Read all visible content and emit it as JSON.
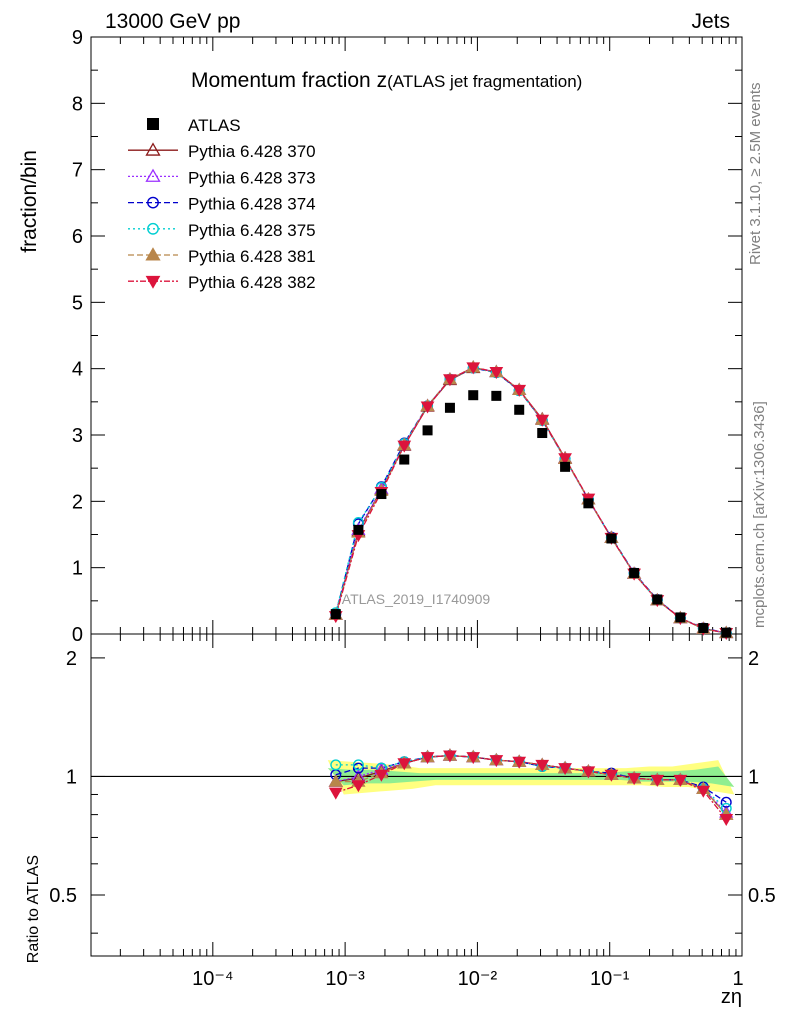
{
  "header": {
    "energy": "13000 GeV pp",
    "process": "Jets"
  },
  "side_labels": {
    "rivet": "Rivet 3.1.10, ≥ 2.5M events",
    "mcplots": "mcplots.cern.ch [arXiv:1306.3436]"
  },
  "analysis_id": "ATLAS_2019_I1740909",
  "chart_data": [
    {
      "type": "line",
      "panel": "main",
      "title_main": "Momentum fraction z",
      "title_sub": "(ATLAS jet fragmentation)",
      "ylabel": "fraction/bin",
      "xlabel": "zη",
      "x_scale": "log",
      "xlim": [
        1.2e-05,
        1.0
      ],
      "ylim": [
        0,
        9
      ],
      "yticks": [
        "0",
        "1",
        "2",
        "3",
        "4",
        "5",
        "6",
        "7",
        "8",
        "9"
      ],
      "xticks": [
        "10⁻⁴",
        "10⁻³",
        "10⁻²",
        "10⁻¹",
        "1"
      ],
      "legend_position": "top-left",
      "x": [
        0.00085,
        0.00126,
        0.00188,
        0.0028,
        0.0042,
        0.0062,
        0.0093,
        0.0139,
        0.0207,
        0.0309,
        0.046,
        0.069,
        0.103,
        0.153,
        0.229,
        0.342,
        0.51,
        0.76
      ],
      "data": {
        "name": "ATLAS",
        "values": [
          0.3,
          1.57,
          2.11,
          2.63,
          3.07,
          3.41,
          3.6,
          3.59,
          3.38,
          3.03,
          2.52,
          1.97,
          1.44,
          0.92,
          0.52,
          0.25,
          0.09,
          0.02
        ]
      },
      "series": [
        {
          "name": "Pythia 6.428 370",
          "color": "#8b1a1a",
          "dash": "",
          "marker": "triangle-open",
          "values": [
            0.29,
            1.55,
            2.18,
            2.84,
            3.43,
            3.83,
            4.01,
            3.95,
            3.68,
            3.24,
            2.65,
            2.03,
            1.45,
            0.91,
            0.51,
            0.24,
            0.08,
            0.016
          ]
        },
        {
          "name": "Pythia 6.428 373",
          "color": "#9b30ff",
          "dash": "2,2",
          "marker": "triangle-open",
          "values": [
            0.29,
            1.57,
            2.19,
            2.85,
            3.44,
            3.84,
            4.02,
            3.95,
            3.68,
            3.23,
            2.64,
            2.03,
            1.45,
            0.91,
            0.51,
            0.24,
            0.08,
            0.016
          ]
        },
        {
          "name": "Pythia 6.428 374",
          "color": "#0000cd",
          "dash": "6,3",
          "marker": "circle-open",
          "values": [
            0.3,
            1.66,
            2.22,
            2.88,
            3.44,
            3.84,
            4.01,
            3.94,
            3.67,
            3.22,
            2.64,
            2.03,
            1.46,
            0.92,
            0.52,
            0.24,
            0.09,
            0.017
          ]
        },
        {
          "name": "Pythia 6.428 375",
          "color": "#00ced1",
          "dash": "2,3",
          "marker": "circle-open",
          "values": [
            0.32,
            1.68,
            2.21,
            2.87,
            3.44,
            3.84,
            4.01,
            3.94,
            3.67,
            3.22,
            2.64,
            2.03,
            1.45,
            0.91,
            0.51,
            0.24,
            0.08,
            0.016
          ]
        },
        {
          "name": "Pythia 6.428 381",
          "color": "#b8864b",
          "dash": "6,3",
          "marker": "triangle-filled",
          "values": [
            0.29,
            1.53,
            2.16,
            2.85,
            3.44,
            3.84,
            4.02,
            3.95,
            3.68,
            3.23,
            2.64,
            2.03,
            1.45,
            0.91,
            0.51,
            0.24,
            0.08,
            0.016
          ]
        },
        {
          "name": "Pythia 6.428 382",
          "color": "#dc143c",
          "dash": "6,2,2,2",
          "marker": "triangle-down-filled",
          "values": [
            0.27,
            1.49,
            2.14,
            2.84,
            3.43,
            3.84,
            4.02,
            3.95,
            3.68,
            3.23,
            2.65,
            2.04,
            1.45,
            0.91,
            0.51,
            0.24,
            0.08,
            0.015
          ]
        }
      ]
    },
    {
      "type": "line",
      "panel": "ratio",
      "ylabel": "Ratio to ATLAS",
      "x_scale": "log",
      "xlim": [
        1.2e-05,
        1.0
      ],
      "ylim": [
        0.35,
        2.3
      ],
      "yticks": [
        "0.5",
        "1",
        "2"
      ],
      "reference": 1.0,
      "x": [
        0.00085,
        0.00126,
        0.00188,
        0.0028,
        0.0042,
        0.0062,
        0.0093,
        0.0139,
        0.0207,
        0.0309,
        0.046,
        0.069,
        0.103,
        0.153,
        0.229,
        0.342,
        0.51,
        0.76
      ],
      "band_outer": [
        0.1,
        0.09,
        0.08,
        0.07,
        0.05,
        0.05,
        0.05,
        0.05,
        0.05,
        0.05,
        0.05,
        0.05,
        0.05,
        0.05,
        0.06,
        0.06,
        0.08,
        0.1
      ],
      "band_inner": [
        0.05,
        0.04,
        0.04,
        0.03,
        0.02,
        0.02,
        0.02,
        0.02,
        0.02,
        0.02,
        0.02,
        0.02,
        0.02,
        0.03,
        0.03,
        0.03,
        0.04,
        0.06
      ],
      "series": [
        {
          "name": "Pythia 6.428 370",
          "values": [
            0.97,
            0.99,
            1.03,
            1.08,
            1.12,
            1.13,
            1.12,
            1.1,
            1.09,
            1.07,
            1.05,
            1.03,
            1.01,
            0.99,
            0.98,
            0.98,
            0.93,
            0.8
          ]
        },
        {
          "name": "Pythia 6.428 373",
          "values": [
            0.97,
            1.0,
            1.04,
            1.08,
            1.12,
            1.13,
            1.12,
            1.1,
            1.09,
            1.07,
            1.05,
            1.03,
            1.01,
            0.99,
            0.98,
            0.98,
            0.93,
            0.81
          ]
        },
        {
          "name": "Pythia 6.428 374",
          "values": [
            1.01,
            1.05,
            1.05,
            1.09,
            1.12,
            1.13,
            1.12,
            1.1,
            1.09,
            1.06,
            1.05,
            1.03,
            1.02,
            0.99,
            0.98,
            0.98,
            0.94,
            0.86
          ]
        },
        {
          "name": "Pythia 6.428 375",
          "values": [
            1.07,
            1.07,
            1.05,
            1.09,
            1.12,
            1.13,
            1.12,
            1.1,
            1.09,
            1.06,
            1.05,
            1.03,
            1.01,
            0.99,
            0.98,
            0.98,
            0.93,
            0.83
          ]
        },
        {
          "name": "Pythia 6.428 381",
          "values": [
            0.97,
            0.97,
            1.02,
            1.08,
            1.12,
            1.13,
            1.12,
            1.1,
            1.09,
            1.07,
            1.05,
            1.03,
            1.01,
            0.99,
            0.98,
            0.98,
            0.93,
            0.8
          ]
        },
        {
          "name": "Pythia 6.428 382",
          "values": [
            0.91,
            0.95,
            1.01,
            1.08,
            1.12,
            1.13,
            1.12,
            1.1,
            1.09,
            1.07,
            1.05,
            1.03,
            1.01,
            0.99,
            0.98,
            0.98,
            0.92,
            0.78
          ]
        }
      ]
    }
  ]
}
